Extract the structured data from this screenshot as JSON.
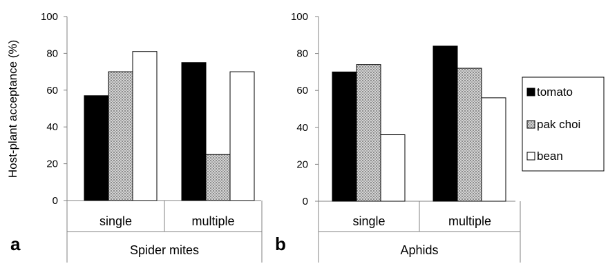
{
  "colors": {
    "tomato": "#000000",
    "pak_choi": "#b8b8b8",
    "bean": "#ffffff",
    "axis": "#808080",
    "bar_outline": "#000000"
  },
  "legend": {
    "placement": "right",
    "items": [
      {
        "label": "tomato",
        "swatch": "solid-black"
      },
      {
        "label": "pak choi",
        "swatch": "gray-hatched"
      },
      {
        "label": "bean",
        "swatch": "white"
      }
    ]
  },
  "chart_data": [
    {
      "type": "bar",
      "panel_label": "a",
      "ylabel": "Host-plant acceptance (%)",
      "ylim": [
        0,
        100
      ],
      "yticks": [
        "0",
        "20",
        "40",
        "60",
        "80",
        "100"
      ],
      "group_label": "Spider mites",
      "categories": [
        "single",
        "multiple"
      ],
      "series": [
        {
          "name": "tomato",
          "values": [
            57,
            75
          ]
        },
        {
          "name": "pak choi",
          "values": [
            70,
            25
          ]
        },
        {
          "name": "bean",
          "values": [
            81,
            70
          ]
        }
      ],
      "grid": false
    },
    {
      "type": "bar",
      "panel_label": "b",
      "ylabel": "",
      "ylim": [
        0,
        100
      ],
      "yticks": [
        "0",
        "20",
        "40",
        "60",
        "80",
        "100"
      ],
      "group_label": "Aphids",
      "categories": [
        "single",
        "multiple"
      ],
      "series": [
        {
          "name": "tomato",
          "values": [
            70,
            84
          ]
        },
        {
          "name": "pak choi",
          "values": [
            74,
            72
          ]
        },
        {
          "name": "bean",
          "values": [
            36,
            56
          ]
        }
      ],
      "grid": false
    }
  ]
}
